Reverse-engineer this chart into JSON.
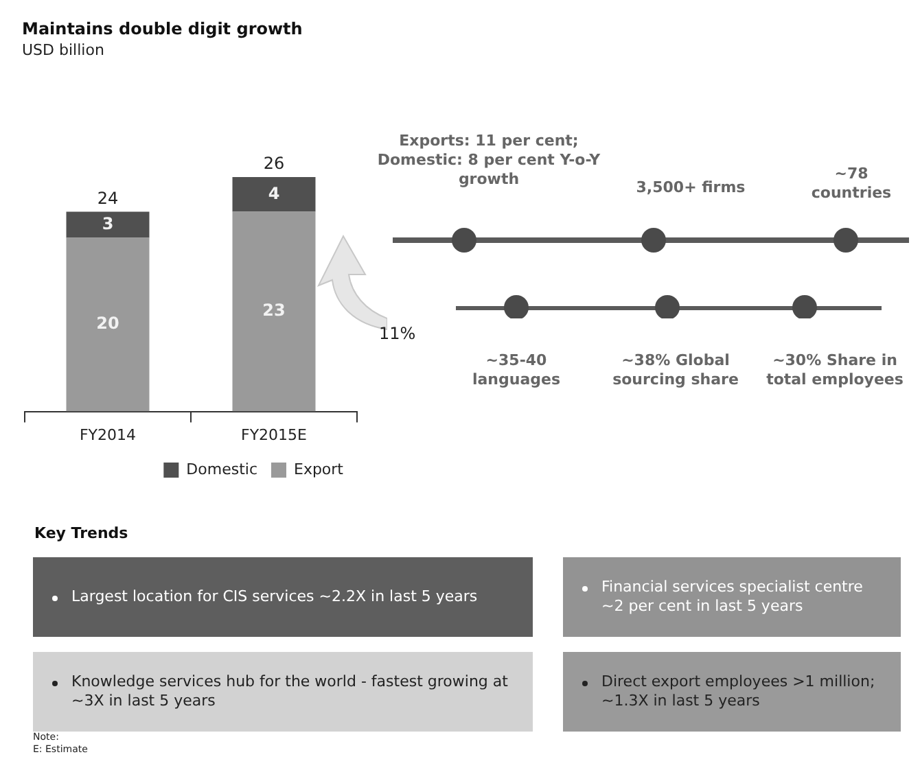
{
  "chart_data": {
    "type": "bar",
    "title": "Maintains double digit growth",
    "subtitle": "USD billion",
    "categories": [
      "FY2014",
      "FY2015E"
    ],
    "stacked": true,
    "data_labels": true,
    "totals": [
      "24",
      "26"
    ],
    "legend": "bottom",
    "grid": false,
    "series": [
      {
        "name": "Export",
        "color": "#9a9a9a",
        "values": [
          20,
          23
        ]
      },
      {
        "name": "Domestic",
        "color": "#505050",
        "values": [
          3,
          4
        ]
      }
    ],
    "annotations": [
      "11%",
      "Exports: 11 per cent; Domestic: 8 per cent Y-o-Y growth",
      "3,500+ firms",
      "~78 countries",
      "~35-40 languages",
      "~38% Global sourcing share",
      "~30% Share in total employees",
      "Key Trends",
      "Largest location for CIS services ~2.2X in last 5 years",
      "Financial services specialist centre ~2 per cent in last 5 years",
      "Knowledge services hub for the world - fastest growing at ~3X in last 5 years",
      "Direct export employees >1 million; ~1.3X in last 5 years",
      "Note:",
      "E: Estimate"
    ]
  }
}
